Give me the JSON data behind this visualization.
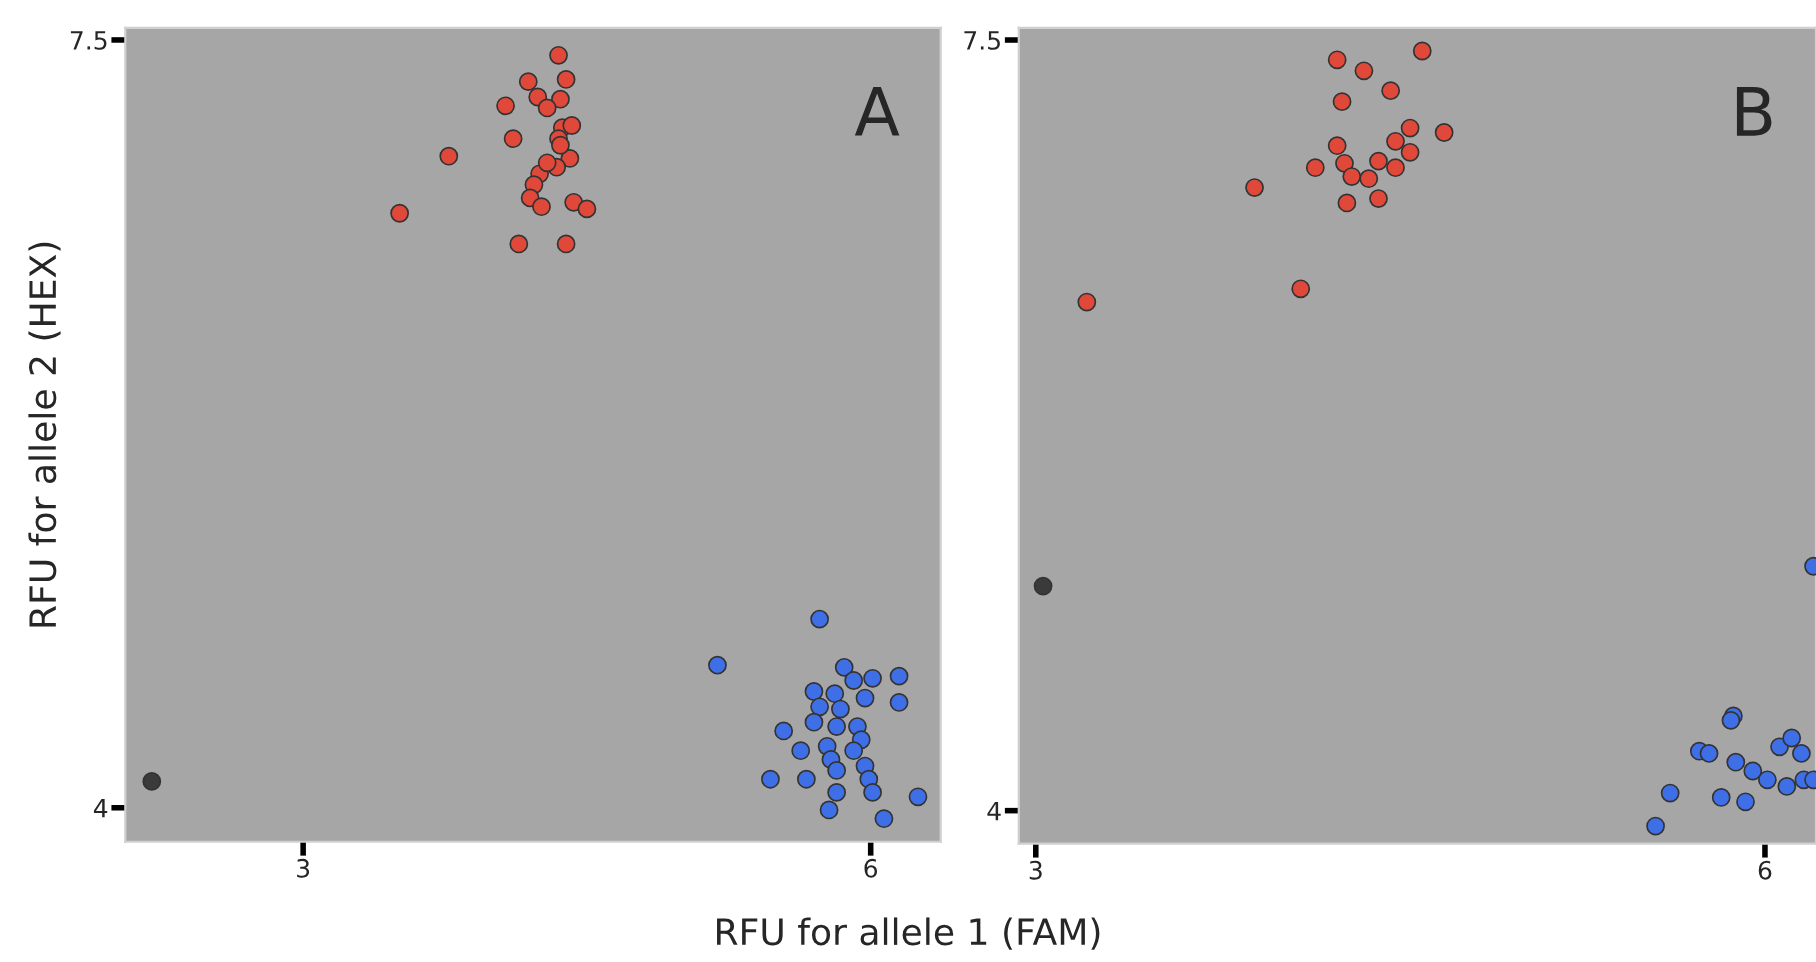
{
  "chart_data": [
    {
      "type": "scatter",
      "xlabel": "RFU for allele 1 (FAM)",
      "ylabel": "RFU for allele 2 (HEX)",
      "annotations": [
        "A"
      ],
      "xlim": [
        2.06,
        6.37
      ],
      "ylim": [
        3.845,
        7.555
      ],
      "xticks": [
        3,
        6
      ],
      "yticks": [
        4,
        7.5
      ],
      "grid": false,
      "legend": false,
      "marker": "circle",
      "series": [
        {
          "color": "#e0483a",
          "x": [
            4.35,
            4.19,
            4.39,
            4.24,
            4.36,
            4.29,
            4.07,
            4.11,
            4.37,
            4.42,
            4.35,
            3.77,
            4.41,
            4.34,
            4.25,
            4.22,
            4.2,
            4.26,
            4.43,
            4.5,
            3.51,
            4.14,
            4.39,
            4.29,
            4.36
          ],
          "values": [
            7.43,
            7.31,
            7.32,
            7.24,
            7.23,
            7.19,
            7.2,
            7.05,
            7.1,
            7.11,
            7.05,
            6.97,
            6.96,
            6.92,
            6.89,
            6.84,
            6.78,
            6.74,
            6.76,
            6.73,
            6.71,
            6.57,
            6.57,
            6.94,
            7.02
          ]
        },
        {
          "color": "#3f6fe6",
          "x": [
            5.73,
            5.19,
            5.86,
            5.91,
            6.01,
            6.15,
            5.7,
            5.81,
            5.97,
            6.15,
            5.73,
            5.84,
            5.7,
            5.82,
            5.93,
            5.54,
            5.95,
            5.63,
            5.77,
            5.91,
            5.79,
            5.82,
            5.97,
            5.47,
            5.66,
            5.99,
            6.01,
            5.82,
            6.25,
            5.78,
            6.07
          ],
          "values": [
            4.86,
            4.65,
            4.64,
            4.58,
            4.59,
            4.6,
            4.53,
            4.52,
            4.5,
            4.48,
            4.46,
            4.45,
            4.39,
            4.37,
            4.37,
            4.35,
            4.31,
            4.26,
            4.28,
            4.26,
            4.22,
            4.17,
            4.19,
            4.13,
            4.13,
            4.13,
            4.07,
            4.07,
            4.05,
            3.99,
            3.95
          ]
        },
        {
          "color": "#3a3a3a",
          "x": [
            2.2
          ],
          "values": [
            4.12
          ]
        }
      ]
    },
    {
      "type": "scatter",
      "annotations": [
        "B"
      ],
      "xlim": [
        2.93,
        6.21
      ],
      "ylim": [
        3.85,
        7.555
      ],
      "xticks": [
        3,
        6
      ],
      "yticks": [
        4,
        7.5
      ],
      "grid": false,
      "legend": false,
      "marker": "circle",
      "series": [
        {
          "color": "#e0483a",
          "x": [
            4.59,
            4.24,
            4.35,
            4.46,
            4.26,
            4.68,
            4.54,
            4.24,
            4.48,
            4.54,
            4.15,
            4.27,
            4.41,
            4.48,
            4.3,
            4.37,
            3.9,
            4.28,
            4.41,
            4.09,
            3.21
          ],
          "values": [
            7.45,
            7.41,
            7.36,
            7.27,
            7.22,
            7.08,
            7.1,
            7.02,
            7.04,
            6.99,
            6.92,
            6.94,
            6.95,
            6.92,
            6.88,
            6.87,
            6.83,
            6.76,
            6.78,
            6.37,
            6.31
          ]
        },
        {
          "color": "#3f6fe6",
          "x": [
            6.2,
            5.87,
            5.86,
            5.73,
            5.77,
            5.88,
            6.06,
            6.11,
            6.15,
            5.95,
            6.01,
            6.09,
            6.16,
            6.2,
            5.61,
            5.82,
            5.92,
            5.55
          ],
          "values": [
            5.11,
            4.43,
            4.41,
            4.27,
            4.26,
            4.22,
            4.29,
            4.33,
            4.26,
            4.18,
            4.14,
            4.11,
            4.14,
            4.14,
            4.08,
            4.06,
            4.04,
            3.93
          ]
        },
        {
          "color": "#3a3a3a",
          "x": [
            3.03
          ],
          "values": [
            5.02
          ]
        }
      ]
    }
  ]
}
